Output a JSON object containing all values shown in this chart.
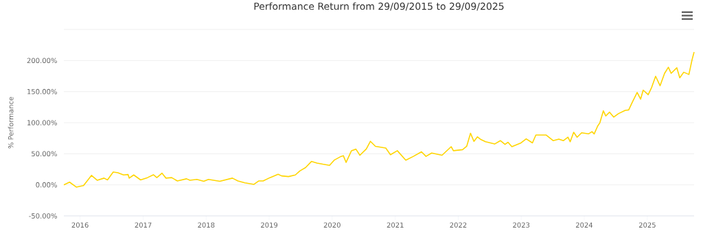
{
  "chart_data": {
    "type": "line",
    "title": "Performance Return from 29/09/2015 to 29/09/2025",
    "ylabel": "% Performance",
    "x": [
      "2015-09-29",
      "2015-11-01",
      "2015-12-10",
      "2016-01-21",
      "2016-03-07",
      "2016-04-10",
      "2016-05-19",
      "2016-06-08",
      "2016-07-11",
      "2016-08-07",
      "2016-09-09",
      "2016-10-05",
      "2016-10-12",
      "2016-11-07",
      "2016-12-17",
      "2017-01-26",
      "2017-03-01",
      "2017-03-21",
      "2017-04-20",
      "2017-05-13",
      "2017-06-15",
      "2017-07-18",
      "2017-09-09",
      "2017-09-29",
      "2017-11-08",
      "2017-12-18",
      "2018-01-14",
      "2018-03-21",
      "2018-06-02",
      "2018-07-04",
      "2018-08-13",
      "2018-10-05",
      "2018-11-01",
      "2018-11-27",
      "2019-01-06",
      "2019-02-22",
      "2019-03-14",
      "2019-04-23",
      "2019-06-02",
      "2019-06-28",
      "2019-07-31",
      "2019-09-03",
      "2019-10-06",
      "2019-11-08",
      "2019-12-17",
      "2020-01-13",
      "2020-02-22",
      "2020-03-06",
      "2020-03-22",
      "2020-04-22",
      "2020-05-18",
      "2020-06-10",
      "2020-07-17",
      "2020-08-10",
      "2020-09-08",
      "2020-11-07",
      "2020-12-04",
      "2021-01-13",
      "2021-03-03",
      "2021-04-16",
      "2021-06-02",
      "2021-06-28",
      "2021-07-31",
      "2021-09-29",
      "2021-11-21",
      "2021-12-04",
      "2022-01-26",
      "2022-02-19",
      "2022-03-13",
      "2022-04-02",
      "2022-04-22",
      "2022-05-12",
      "2022-06-08",
      "2022-07-31",
      "2022-09-02",
      "2022-09-29",
      "2022-10-16",
      "2022-11-08",
      "2022-12-31",
      "2023-01-30",
      "2023-03-07",
      "2023-03-27",
      "2023-05-26",
      "2023-07-05",
      "2023-08-07",
      "2023-09-03",
      "2023-09-29",
      "2023-10-12",
      "2023-11-01",
      "2023-11-21",
      "2023-12-17",
      "2024-01-26",
      "2024-02-15",
      "2024-02-28",
      "2024-03-19",
      "2024-04-01",
      "2024-04-21",
      "2024-05-05",
      "2024-05-27",
      "2024-06-20",
      "2024-07-17",
      "2024-08-26",
      "2024-09-15",
      "2024-10-05",
      "2024-11-03",
      "2024-11-23",
      "2024-12-08",
      "2025-01-06",
      "2025-01-26",
      "2025-02-18",
      "2025-03-16",
      "2025-04-11",
      "2025-05-03",
      "2025-05-19",
      "2025-06-21",
      "2025-07-08",
      "2025-07-31",
      "2025-08-30",
      "2025-09-17",
      "2025-09-29"
    ],
    "series": [
      {
        "color": "#ffd500",
        "values": [
          0,
          4.3,
          -3.6,
          -1.1,
          15.2,
          7.3,
          10.8,
          7.9,
          20.6,
          19.5,
          15.9,
          16.6,
          10.8,
          15.9,
          7.9,
          11.6,
          16.2,
          11.6,
          18.7,
          10.8,
          11.6,
          6.2,
          9.7,
          7.3,
          8.7,
          5.7,
          8.7,
          5.7,
          10.8,
          6.2,
          3.2,
          0.8,
          6.2,
          6.2,
          11.6,
          17,
          14.4,
          13.3,
          15.9,
          22.4,
          27.8,
          37.6,
          35,
          33.2,
          31.4,
          39.7,
          45.8,
          46.9,
          36.1,
          54.9,
          57.4,
          47.6,
          57.7,
          70,
          62,
          59.2,
          48.4,
          54.9,
          39.7,
          45.8,
          53.1,
          45.8,
          51.2,
          47.6,
          61.4,
          54.9,
          56.6,
          62,
          83,
          70,
          77.2,
          72.9,
          69.3,
          65.7,
          71.1,
          65,
          68.5,
          61.4,
          67.5,
          74,
          67.5,
          80.1,
          80.1,
          71.1,
          73.6,
          71.1,
          76.6,
          69.3,
          84.5,
          76.6,
          83.7,
          82,
          85.5,
          82,
          94.5,
          99.9,
          119.1,
          110.8,
          116.9,
          109,
          114.5,
          119.9,
          120.5,
          132.4,
          148.7,
          137.8,
          152.4,
          145.1,
          156.7,
          174.7,
          159.5,
          179.4,
          189.2,
          179.4,
          188.4,
          172.2,
          181.2,
          177.6,
          201.1,
          213.6
        ]
      }
    ],
    "xlim": [
      "2015-09-29",
      "2025-09-29"
    ],
    "xticks": [
      {
        "value": "2016-01-01",
        "label": "2016"
      },
      {
        "value": "2017-01-01",
        "label": "2017"
      },
      {
        "value": "2018-01-01",
        "label": "2018"
      },
      {
        "value": "2019-01-01",
        "label": "2019"
      },
      {
        "value": "2020-01-01",
        "label": "2020"
      },
      {
        "value": "2021-01-01",
        "label": "2021"
      },
      {
        "value": "2022-01-01",
        "label": "2022"
      },
      {
        "value": "2023-01-01",
        "label": "2023"
      },
      {
        "value": "2024-01-01",
        "label": "2024"
      },
      {
        "value": "2025-01-01",
        "label": "2025"
      }
    ],
    "ylim": [
      -50,
      250
    ],
    "yticks": [
      {
        "value": -50,
        "label": "-50.00%"
      },
      {
        "value": 0,
        "label": "0.00%"
      },
      {
        "value": 50,
        "label": "50.00%"
      },
      {
        "value": 100,
        "label": "100.00%"
      },
      {
        "value": 150,
        "label": "150.00%"
      },
      {
        "value": 200,
        "label": "200.00%"
      },
      {
        "value": 250,
        "label": null
      }
    ],
    "grid": "y",
    "marker": "none",
    "line_style": "solid"
  }
}
